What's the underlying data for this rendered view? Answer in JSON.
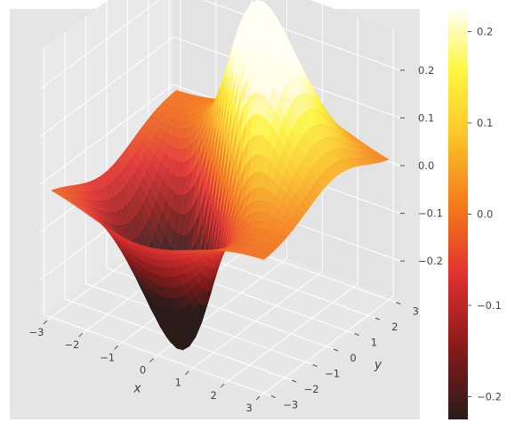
{
  "chart_data": {
    "type": "surface3d",
    "title": "",
    "xlabel": "x",
    "ylabel": "y",
    "zlabel": "",
    "xlim": [
      -3.2,
      3.2
    ],
    "ylim": [
      -3.2,
      3.2
    ],
    "zlim": [
      -0.28,
      0.28
    ],
    "x_ticks": [
      -3,
      -2,
      -1,
      0,
      1,
      2,
      3
    ],
    "y_ticks": [
      -3,
      -2,
      -1,
      0,
      1,
      2,
      3
    ],
    "z_ticks": [
      0.2,
      0.1,
      0.0,
      -0.1,
      -0.2
    ],
    "x_tick_labels": [
      "−3",
      "−2",
      "−1",
      "0",
      "1",
      "2",
      "3"
    ],
    "y_tick_labels": [
      "−3",
      "−2",
      "−1",
      "0",
      "1",
      "2",
      "3"
    ],
    "z_tick_labels": [
      "0.2",
      "0.1",
      "0.0",
      "−0.1",
      "−0.2"
    ],
    "surface_function": "z = y·exp(−x²−y²)·… (saddle-like dipole surface)",
    "sample_points": [
      {
        "x": 0,
        "y": 0,
        "z": 0.0
      },
      {
        "x": 0.7,
        "y": 0.7,
        "z": 0.22
      },
      {
        "x": -0.7,
        "y": -0.7,
        "z": -0.22
      },
      {
        "x": 3,
        "y": 3,
        "z": 0.0
      },
      {
        "x": -3,
        "y": -3,
        "z": 0.0
      }
    ],
    "colormap": "hot",
    "colorbar": {
      "range": [
        -0.225,
        0.225
      ],
      "ticks": [
        0.2,
        0.1,
        0.0,
        -0.1,
        -0.2
      ],
      "tick_labels": [
        "0.2",
        "0.1",
        "0.0",
        "−0.1",
        "−0.2"
      ]
    },
    "grid": true,
    "style": "ggplot"
  }
}
